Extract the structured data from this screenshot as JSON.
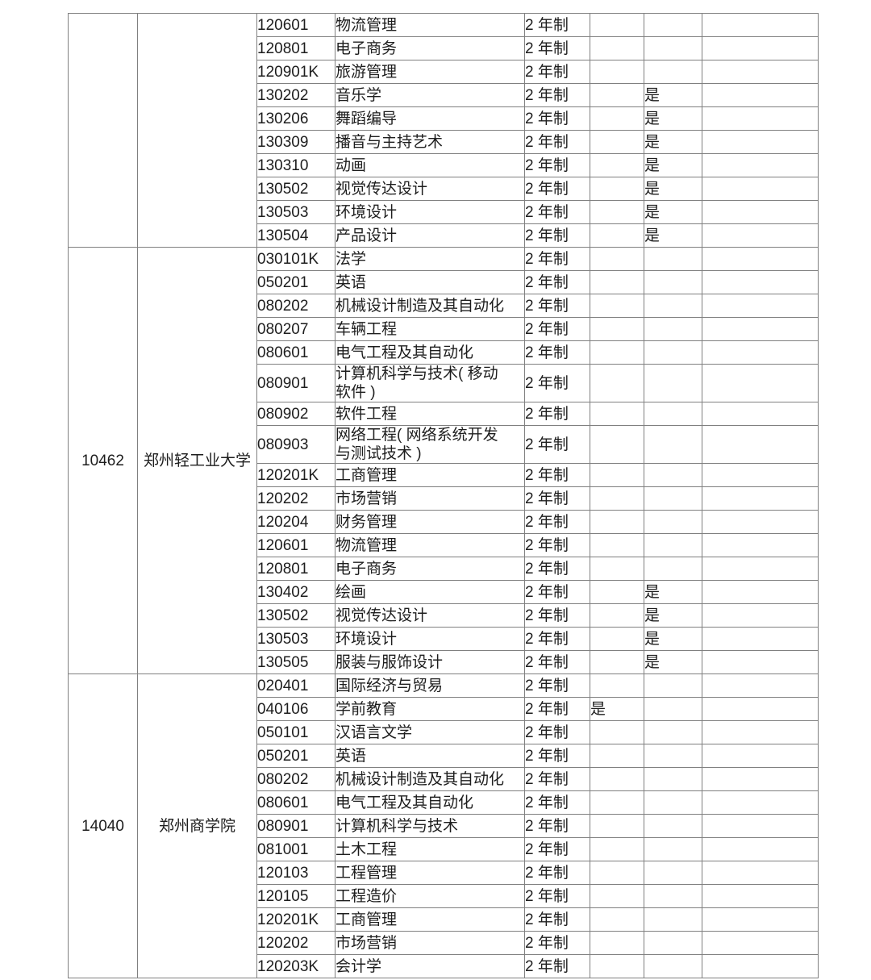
{
  "colors": {
    "background": "#ffffff",
    "border": "#808080",
    "text": "#1d1d1d"
  },
  "table": {
    "sections": [
      {
        "school_code": "",
        "school_name": "",
        "rows": [
          {
            "code": "120601",
            "name": "物流管理",
            "duration": "2 年制",
            "c6": "",
            "c7": "",
            "c8": ""
          },
          {
            "code": "120801",
            "name": "电子商务",
            "duration": "2 年制",
            "c6": "",
            "c7": "",
            "c8": ""
          },
          {
            "code": "120901K",
            "name": "旅游管理",
            "duration": "2 年制",
            "c6": "",
            "c7": "",
            "c8": ""
          },
          {
            "code": "130202",
            "name": "音乐学",
            "duration": "2 年制",
            "c6": "",
            "c7": "是",
            "c8": ""
          },
          {
            "code": "130206",
            "name": "舞蹈编导",
            "duration": "2 年制",
            "c6": "",
            "c7": "是",
            "c8": ""
          },
          {
            "code": "130309",
            "name": "播音与主持艺术",
            "duration": "2 年制",
            "c6": "",
            "c7": "是",
            "c8": ""
          },
          {
            "code": "130310",
            "name": "动画",
            "duration": "2 年制",
            "c6": "",
            "c7": "是",
            "c8": ""
          },
          {
            "code": "130502",
            "name": "视觉传达设计",
            "duration": "2 年制",
            "c6": "",
            "c7": "是",
            "c8": ""
          },
          {
            "code": "130503",
            "name": "环境设计",
            "duration": "2 年制",
            "c6": "",
            "c7": "是",
            "c8": ""
          },
          {
            "code": "130504",
            "name": "产品设计",
            "duration": "2 年制",
            "c6": "",
            "c7": "是",
            "c8": ""
          }
        ]
      },
      {
        "school_code": "10462",
        "school_name": "郑州轻工业大学",
        "rows": [
          {
            "code": "030101K",
            "name": "法学",
            "duration": "2 年制",
            "c6": "",
            "c7": "",
            "c8": ""
          },
          {
            "code": "050201",
            "name": "英语",
            "duration": "2 年制",
            "c6": "",
            "c7": "",
            "c8": ""
          },
          {
            "code": "080202",
            "name": "机械设计制造及其自动化",
            "duration": "2 年制",
            "c6": "",
            "c7": "",
            "c8": ""
          },
          {
            "code": "080207",
            "name": "车辆工程",
            "duration": "2 年制",
            "c6": "",
            "c7": "",
            "c8": ""
          },
          {
            "code": "080601",
            "name": "电气工程及其自动化",
            "duration": "2 年制",
            "c6": "",
            "c7": "",
            "c8": ""
          },
          {
            "code": "080901",
            "name": "计算机科学与技术( 移动\n软件 )",
            "duration": "2 年制",
            "c6": "",
            "c7": "",
            "c8": ""
          },
          {
            "code": "080902",
            "name": "软件工程",
            "duration": "2 年制",
            "c6": "",
            "c7": "",
            "c8": ""
          },
          {
            "code": "080903",
            "name": "网络工程( 网络系统开发\n与测试技术 )",
            "duration": "2 年制",
            "c6": "",
            "c7": "",
            "c8": ""
          },
          {
            "code": "120201K",
            "name": "工商管理",
            "duration": "2 年制",
            "c6": "",
            "c7": "",
            "c8": ""
          },
          {
            "code": "120202",
            "name": "市场营销",
            "duration": "2 年制",
            "c6": "",
            "c7": "",
            "c8": ""
          },
          {
            "code": "120204",
            "name": "财务管理",
            "duration": "2 年制",
            "c6": "",
            "c7": "",
            "c8": ""
          },
          {
            "code": "120601",
            "name": "物流管理",
            "duration": "2 年制",
            "c6": "",
            "c7": "",
            "c8": ""
          },
          {
            "code": "120801",
            "name": "电子商务",
            "duration": "2 年制",
            "c6": "",
            "c7": "",
            "c8": ""
          },
          {
            "code": "130402",
            "name": "绘画",
            "duration": "2 年制",
            "c6": "",
            "c7": "是",
            "c8": ""
          },
          {
            "code": "130502",
            "name": "视觉传达设计",
            "duration": "2 年制",
            "c6": "",
            "c7": "是",
            "c8": ""
          },
          {
            "code": "130503",
            "name": "环境设计",
            "duration": "2 年制",
            "c6": "",
            "c7": "是",
            "c8": ""
          },
          {
            "code": "130505",
            "name": "服装与服饰设计",
            "duration": "2 年制",
            "c6": "",
            "c7": "是",
            "c8": ""
          }
        ]
      },
      {
        "school_code": "14040",
        "school_name": "郑州商学院",
        "rows": [
          {
            "code": "020401",
            "name": "国际经济与贸易",
            "duration": "2 年制",
            "c6": "",
            "c7": "",
            "c8": ""
          },
          {
            "code": "040106",
            "name": "学前教育",
            "duration": "2 年制",
            "c6": "是",
            "c7": "",
            "c8": ""
          },
          {
            "code": "050101",
            "name": "汉语言文学",
            "duration": "2 年制",
            "c6": "",
            "c7": "",
            "c8": ""
          },
          {
            "code": "050201",
            "name": "英语",
            "duration": "2 年制",
            "c6": "",
            "c7": "",
            "c8": ""
          },
          {
            "code": "080202",
            "name": "机械设计制造及其自动化",
            "duration": "2 年制",
            "c6": "",
            "c7": "",
            "c8": ""
          },
          {
            "code": "080601",
            "name": "电气工程及其自动化",
            "duration": "2 年制",
            "c6": "",
            "c7": "",
            "c8": ""
          },
          {
            "code": "080901",
            "name": "计算机科学与技术",
            "duration": "2 年制",
            "c6": "",
            "c7": "",
            "c8": ""
          },
          {
            "code": "081001",
            "name": "土木工程",
            "duration": "2 年制",
            "c6": "",
            "c7": "",
            "c8": ""
          },
          {
            "code": "120103",
            "name": "工程管理",
            "duration": "2 年制",
            "c6": "",
            "c7": "",
            "c8": ""
          },
          {
            "code": "120105",
            "name": "工程造价",
            "duration": "2 年制",
            "c6": "",
            "c7": "",
            "c8": ""
          },
          {
            "code": "120201K",
            "name": "工商管理",
            "duration": "2 年制",
            "c6": "",
            "c7": "",
            "c8": ""
          },
          {
            "code": "120202",
            "name": "市场营销",
            "duration": "2 年制",
            "c6": "",
            "c7": "",
            "c8": ""
          },
          {
            "code": "120203K",
            "name": "会计学",
            "duration": "2 年制",
            "c6": "",
            "c7": "",
            "c8": ""
          }
        ]
      }
    ]
  }
}
